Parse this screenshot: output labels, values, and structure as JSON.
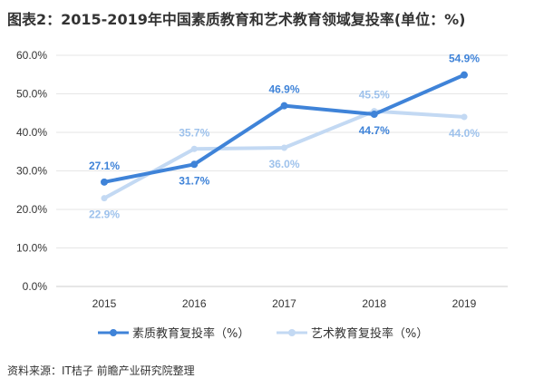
{
  "title": "图表2：2015-2019年中国素质教育和艺术教育领域复投率(单位：%)",
  "source": "资料来源：IT桔子 前瞻产业研究院整理",
  "colors": {
    "series1": "#3f83d8",
    "series2": "#c3d9f3",
    "label2": "#9ec2ec",
    "grid": "#e6e6e6",
    "axis": "#cccccc"
  },
  "chart_data": {
    "type": "line",
    "title": "图表2：2015-2019年中国素质教育和艺术教育领域复投率(单位：%)",
    "xlabel": "",
    "ylabel": "",
    "x": [
      "2015",
      "2016",
      "2017",
      "2018",
      "2019"
    ],
    "ylim": [
      0,
      60
    ],
    "yticks": [
      "0.0%",
      "10.0%",
      "20.0%",
      "30.0%",
      "40.0%",
      "50.0%",
      "60.0%"
    ],
    "grid": true,
    "legend_position": "bottom-center",
    "series": [
      {
        "name": "素质教育复投率（%）",
        "values": [
          27.1,
          31.7,
          46.9,
          44.7,
          54.9
        ],
        "labels": [
          "27.1%",
          "31.7%",
          "46.9%",
          "44.7%",
          "54.9%"
        ]
      },
      {
        "name": "艺术教育复投率（%）",
        "values": [
          22.9,
          35.7,
          36.0,
          45.5,
          44.0
        ],
        "labels": [
          "22.9%",
          "35.7%",
          "36.0%",
          "45.5%",
          "44.0%"
        ]
      }
    ]
  }
}
